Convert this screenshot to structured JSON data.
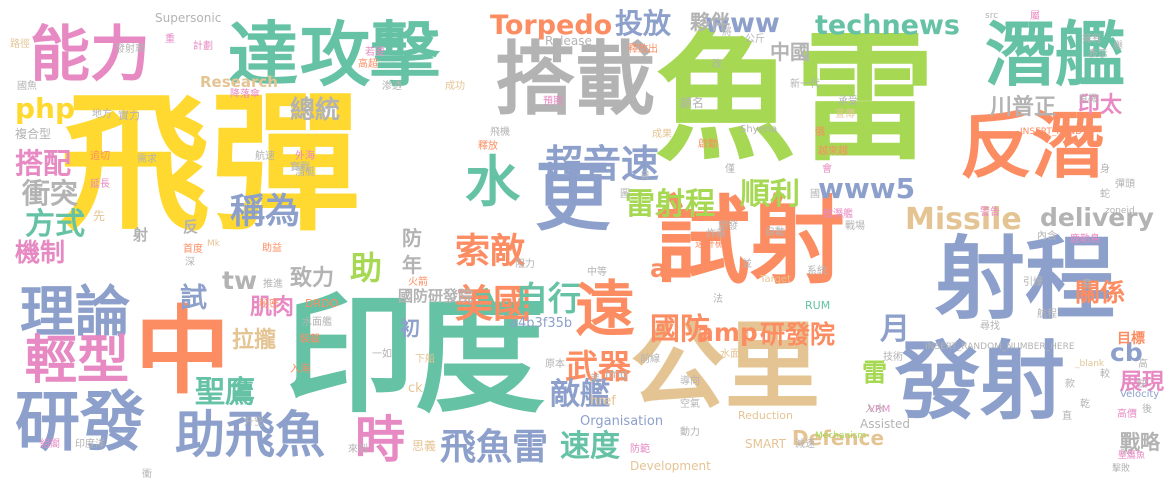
{
  "palette": {
    "green": "#a6d854",
    "yellow": "#ffd92f",
    "teal": "#66c2a5",
    "orange": "#fc8d62",
    "blue": "#8da0cb",
    "pink": "#e78ac3",
    "tan": "#e5c494",
    "gray": "#b3b3b3"
  },
  "words": [
    {
      "text": "飛彈"
    },
    {
      "text": "魚雷"
    },
    {
      "text": "印度"
    },
    {
      "text": "試射"
    },
    {
      "text": "公里"
    },
    {
      "text": "射程"
    },
    {
      "text": "發射"
    },
    {
      "text": "搭載"
    },
    {
      "text": "中"
    },
    {
      "text": "攻擊"
    },
    {
      "text": "反潛"
    },
    {
      "text": "更"
    },
    {
      "text": "潛艦"
    },
    {
      "text": "達"
    },
    {
      "text": "能力"
    },
    {
      "text": "研發"
    },
    {
      "text": "遠"
    },
    {
      "text": "理論"
    },
    {
      "text": "輕型"
    },
    {
      "text": "助飛魚"
    },
    {
      "text": "Missile"
    },
    {
      "text": "超音速"
    },
    {
      "text": "水"
    },
    {
      "text": "Torpedo"
    },
    {
      "text": "technews"
    },
    {
      "text": "www"
    },
    {
      "text": "投放"
    },
    {
      "text": "www5"
    },
    {
      "text": "delivery"
    },
    {
      "text": "飛魚雷"
    },
    {
      "text": "時"
    },
    {
      "text": "美國"
    },
    {
      "text": "amp"
    },
    {
      "text": "研發院"
    },
    {
      "text": "國防"
    },
    {
      "text": "雷射程"
    },
    {
      "text": "順利"
    },
    {
      "text": "稱為"
    },
    {
      "text": "索敵"
    },
    {
      "text": "自行"
    },
    {
      "text": "武器"
    },
    {
      "text": "敵艦"
    },
    {
      "text": "速度"
    },
    {
      "text": "聖鷹"
    },
    {
      "text": "php"
    },
    {
      "text": "搭配"
    },
    {
      "text": "衝突"
    },
    {
      "text": "方式"
    },
    {
      "text": "機制"
    },
    {
      "text": "助"
    },
    {
      "text": "cb"
    },
    {
      "text": "川普正"
    },
    {
      "text": "印太"
    },
    {
      "text": "關係"
    },
    {
      "text": "展現"
    },
    {
      "text": "戰略"
    },
    {
      "text": "中國"
    },
    {
      "text": "夥伴"
    },
    {
      "text": "總統"
    },
    {
      "text": "Research"
    },
    {
      "text": "tw"
    },
    {
      "text": "a"
    },
    {
      "text": "試"
    },
    {
      "text": "致力"
    },
    {
      "text": "肌肉"
    },
    {
      "text": "拉攏"
    },
    {
      "text": "國防研發院"
    },
    {
      "text": "a4b3f35b"
    },
    {
      "text": "初"
    },
    {
      "text": "Defence"
    },
    {
      "text": "Organisation"
    },
    {
      "text": "Development"
    },
    {
      "text": "Assisted"
    },
    {
      "text": "SMART"
    },
    {
      "text": "Supersonic"
    },
    {
      "text": "Release"
    },
    {
      "text": "INSERT_RANDOM_NUMBER_HERE"
    },
    {
      "text": "DRDO"
    },
    {
      "text": "Reduction"
    },
    {
      "text": "Mechanism"
    },
    {
      "text": "Velocity"
    },
    {
      "text": "Shyena"
    },
    {
      "text": "INSERT_RAND"
    },
    {
      "text": "zoneid"
    },
    {
      "text": "href"
    },
    {
      "text": "ck"
    },
    {
      "text": "Target"
    },
    {
      "text": "img"
    },
    {
      "text": "RUM"
    },
    {
      "text": "VRM"
    },
    {
      "text": "aw"
    },
    {
      "text": "_blank"
    },
    {
      "text": "src"
    },
    {
      "text": "Mk"
    },
    {
      "text": "目標"
    },
    {
      "text": "年"
    },
    {
      "text": "月"
    },
    {
      "text": "防"
    },
    {
      "text": "雷"
    },
    {
      "text": "射"
    },
    {
      "text": "反"
    },
    {
      "text": "先"
    },
    {
      "text": "顧名"
    },
    {
      "text": "思義"
    },
    {
      "text": "實力"
    },
    {
      "text": "地方"
    },
    {
      "text": "複合型"
    },
    {
      "text": "追切"
    },
    {
      "text": "需求"
    },
    {
      "text": "延長"
    },
    {
      "text": "首度"
    },
    {
      "text": "潛艇"
    },
    {
      "text": "航速"
    },
    {
      "text": "外海"
    },
    {
      "text": "實戰"
    },
    {
      "text": "發射車"
    },
    {
      "text": "計劃"
    },
    {
      "text": "降落傘"
    },
    {
      "text": "若要"
    },
    {
      "text": "高超"
    },
    {
      "text": "渗透"
    },
    {
      "text": "成功"
    },
    {
      "text": "預期"
    },
    {
      "text": "釋放出"
    },
    {
      "text": "公斤"
    },
    {
      "text": "新一代"
    },
    {
      "text": "承受"
    },
    {
      "text": "宣傳"
    },
    {
      "text": "良機"
    },
    {
      "text": "擁有"
    },
    {
      "text": "表示"
    },
    {
      "text": "路徑"
    },
    {
      "text": "國魚"
    },
    {
      "text": "飛機"
    },
    {
      "text": "釋放"
    },
    {
      "text": "成果"
    },
    {
      "text": "啟動"
    },
    {
      "text": "越來越"
    },
    {
      "text": "敵潛艦"
    },
    {
      "text": "戰場"
    },
    {
      "text": "內含"
    },
    {
      "text": "鹿勒島"
    },
    {
      "text": "彈頭"
    },
    {
      "text": "警告"
    },
    {
      "text": "尋找"
    },
    {
      "text": "引爆"
    },
    {
      "text": "系統"
    },
    {
      "text": "導向"
    },
    {
      "text": "技術"
    },
    {
      "text": "前線"
    },
    {
      "text": "水面"
    },
    {
      "text": "入水"
    },
    {
      "text": "減速"
    },
    {
      "text": "聖鷹魚"
    },
    {
      "text": "擊敗"
    },
    {
      "text": "來到"
    },
    {
      "text": "一如"
    },
    {
      "text": "升空"
    },
    {
      "text": "入海"
    },
    {
      "text": "組閣"
    },
    {
      "text": "印度洋"
    },
    {
      "text": "水面艦"
    },
    {
      "text": "火箭"
    },
    {
      "text": "推進"
    },
    {
      "text": "阻力"
    },
    {
      "text": "中等"
    },
    {
      "text": "原本"
    },
    {
      "text": "裝載"
    },
    {
      "text": "下船"
    },
    {
      "text": "炸藥"
    },
    {
      "text": "自動"
    },
    {
      "text": "遠升機"
    },
    {
      "text": "空氣"
    },
    {
      "text": "動力"
    },
    {
      "text": "防範"
    },
    {
      "text": "開發"
    },
    {
      "text": "快"
    },
    {
      "text": "航程"
    },
    {
      "text": "助益"
    },
    {
      "text": "衝"
    },
    {
      "text": "高價"
    },
    {
      "text": "秘密"
    },
    {
      "text": "深"
    },
    {
      "text": "重"
    },
    {
      "text": "國"
    },
    {
      "text": "美"
    },
    {
      "text": "法"
    },
    {
      "text": "僅"
    },
    {
      "text": "會"
    },
    {
      "text": "將"
    },
    {
      "text": "島"
    },
    {
      "text": "改"
    },
    {
      "text": "身"
    },
    {
      "text": "日"
    },
    {
      "text": "款"
    },
    {
      "text": "直"
    },
    {
      "text": "舉"
    },
    {
      "text": "乾"
    },
    {
      "text": "後"
    },
    {
      "text": "圖"
    },
    {
      "text": "蛇"
    },
    {
      "text": "屬"
    },
    {
      "text": "俄"
    },
    {
      "text": "並"
    },
    {
      "text": "高"
    },
    {
      "text": "較"
    }
  ]
}
